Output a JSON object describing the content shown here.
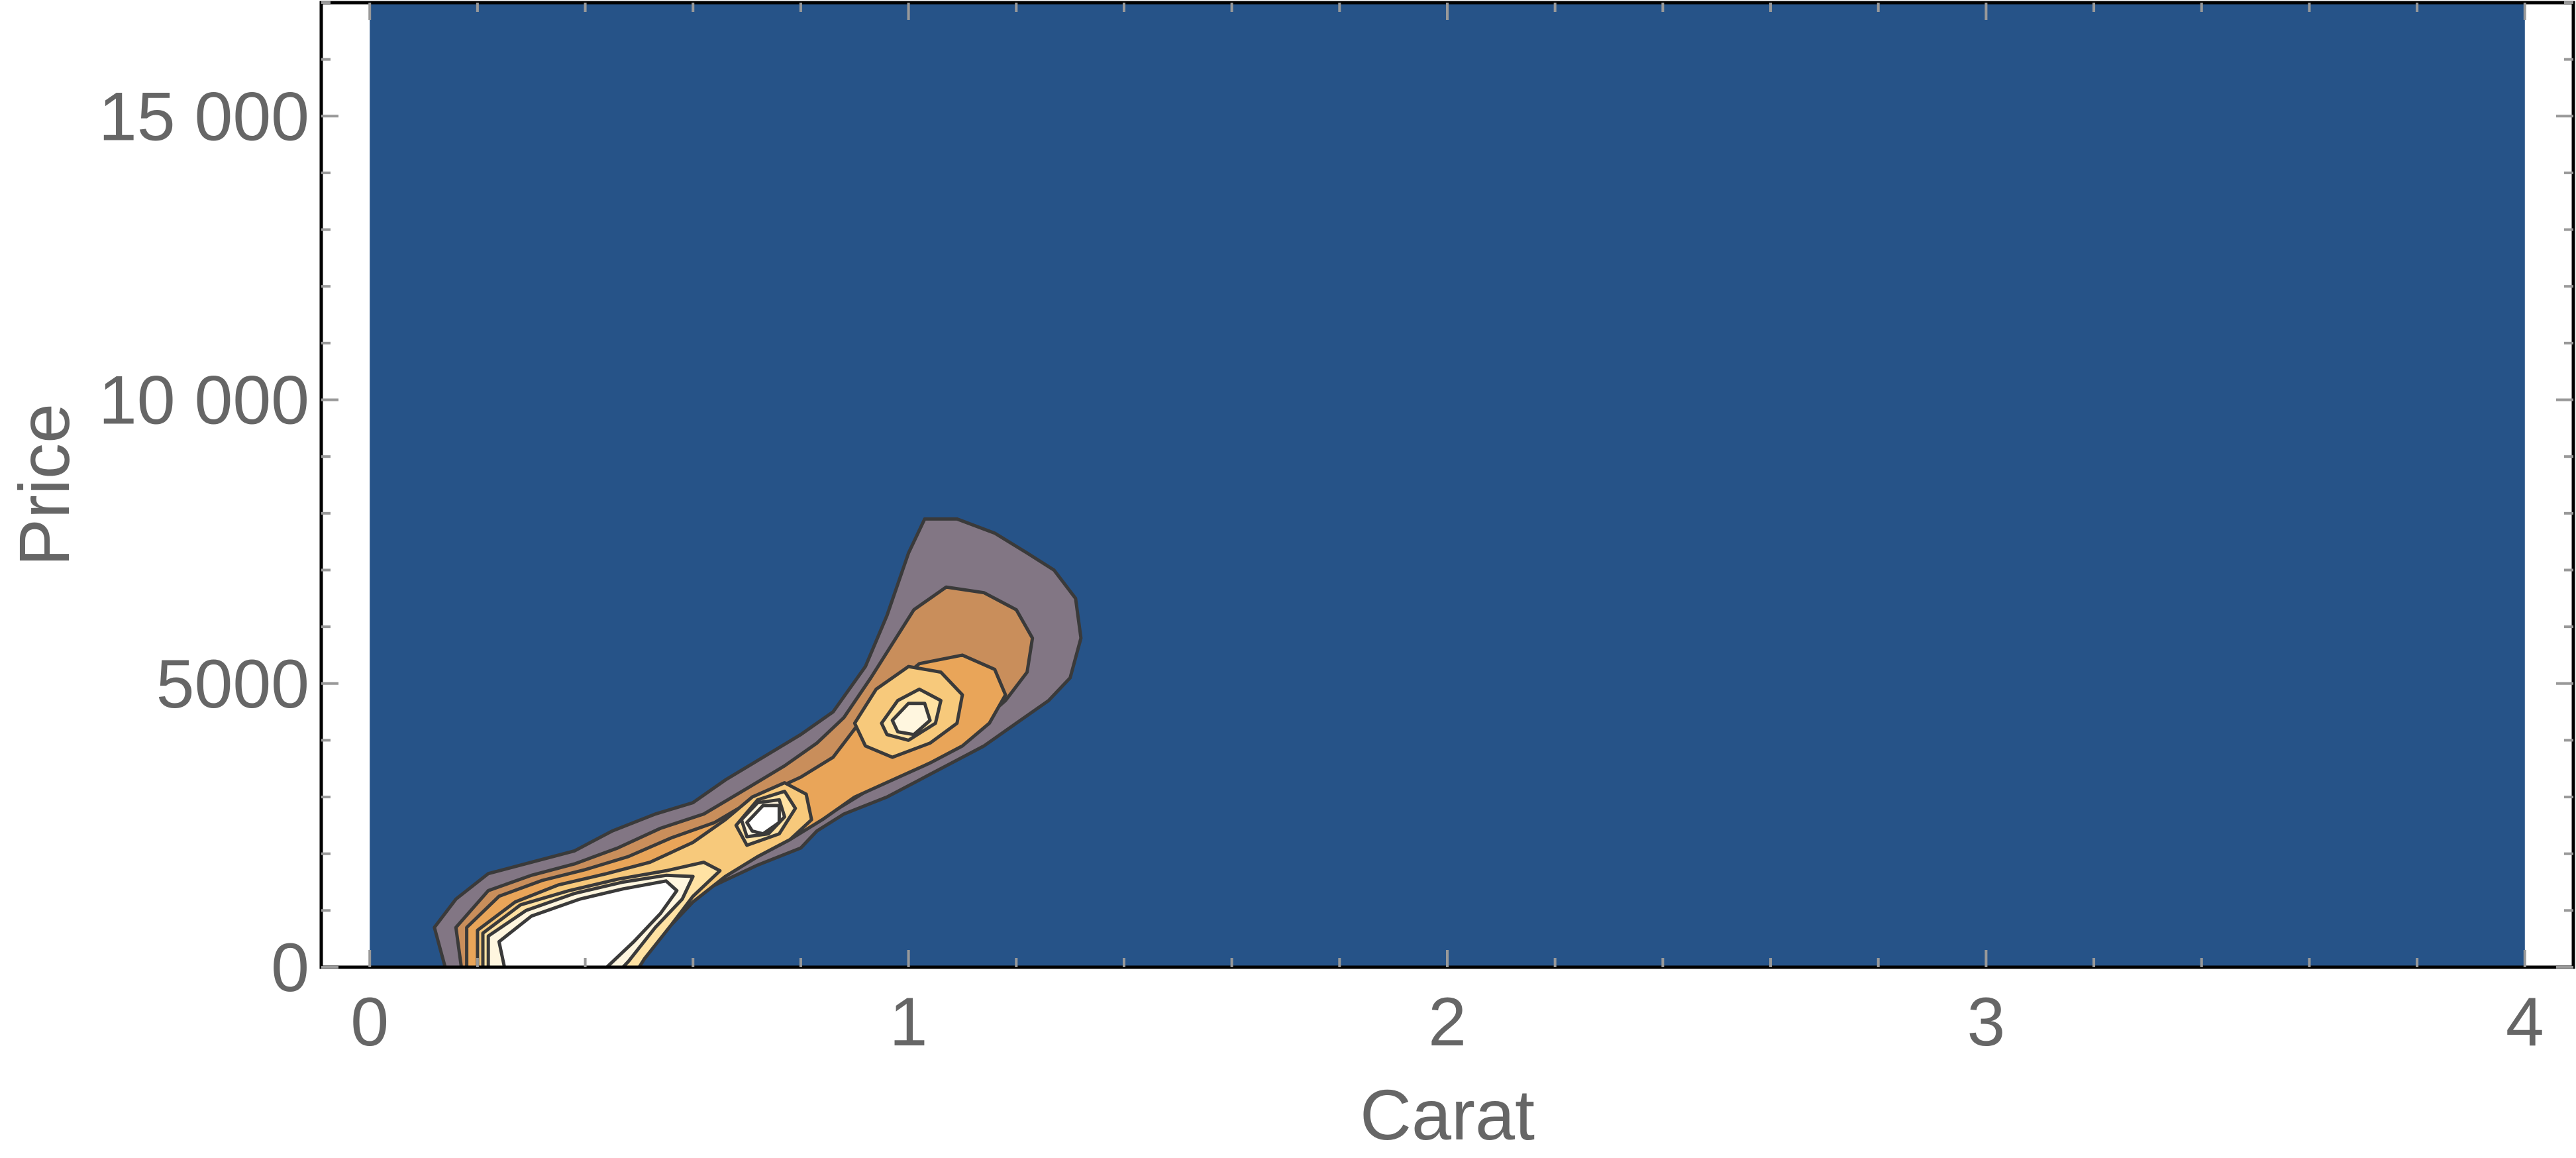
{
  "chart_data": {
    "type": "contour",
    "xlabel": "Carat",
    "ylabel": "Price",
    "xlim": [
      -0.09,
      4.09
    ],
    "ylim": [
      0,
      17000
    ],
    "x_ticks": [
      {
        "value": 0,
        "label": "0"
      },
      {
        "value": 1,
        "label": "1"
      },
      {
        "value": 2,
        "label": "2"
      },
      {
        "value": 3,
        "label": "3"
      },
      {
        "value": 4,
        "label": "4"
      }
    ],
    "y_ticks": [
      {
        "value": 0,
        "label": "0"
      },
      {
        "value": 5000,
        "label": "5000"
      },
      {
        "value": 10000,
        "label": "10 000"
      },
      {
        "value": 15000,
        "label": "15 000"
      }
    ],
    "filled_region": {
      "x": [
        0,
        4
      ],
      "y": [
        0,
        17000
      ]
    },
    "grid": false,
    "colors": {
      "background": "#265388",
      "levels": [
        "#827684",
        "#c98e5b",
        "#e9a559",
        "#f7c97b",
        "#ffe2a3",
        "#fff6df",
        "#ffffff"
      ],
      "contour_line": "#3a3a3a",
      "frame": "#000000",
      "text": "#666666"
    },
    "contour_levels": [
      {
        "level": 1,
        "polygons": [
          [
            [
              0.14,
              0
            ],
            [
              0.12,
              700
            ],
            [
              0.16,
              1200
            ],
            [
              0.22,
              1650
            ],
            [
              0.3,
              1850
            ],
            [
              0.38,
              2050
            ],
            [
              0.45,
              2400
            ],
            [
              0.53,
              2700
            ],
            [
              0.6,
              2900
            ],
            [
              0.66,
              3300
            ],
            [
              0.73,
              3700
            ],
            [
              0.8,
              4100
            ],
            [
              0.86,
              4500
            ],
            [
              0.92,
              5300
            ],
            [
              0.96,
              6200
            ],
            [
              1.0,
              7300
            ],
            [
              1.03,
              7900
            ],
            [
              1.09,
              7900
            ],
            [
              1.16,
              7650
            ],
            [
              1.22,
              7300
            ],
            [
              1.27,
              7000
            ],
            [
              1.31,
              6500
            ],
            [
              1.32,
              5800
            ],
            [
              1.3,
              5100
            ],
            [
              1.26,
              4700
            ],
            [
              1.2,
              4300
            ],
            [
              1.14,
              3900
            ],
            [
              1.08,
              3600
            ],
            [
              1.02,
              3300
            ],
            [
              0.96,
              3000
            ],
            [
              0.88,
              2700
            ],
            [
              0.83,
              2400
            ],
            [
              0.8,
              2100
            ],
            [
              0.72,
              1800
            ],
            [
              0.63,
              1400
            ],
            [
              0.57,
              1000
            ],
            [
              0.52,
              550
            ],
            [
              0.46,
              100
            ],
            [
              0.43,
              0
            ]
          ]
        ]
      },
      {
        "level": 2,
        "polygons": [
          [
            [
              0.17,
              0
            ],
            [
              0.16,
              700
            ],
            [
              0.22,
              1350
            ],
            [
              0.3,
              1620
            ],
            [
              0.38,
              1820
            ],
            [
              0.46,
              2100
            ],
            [
              0.54,
              2450
            ],
            [
              0.62,
              2700
            ],
            [
              0.7,
              3150
            ],
            [
              0.77,
              3550
            ],
            [
              0.83,
              3950
            ],
            [
              0.88,
              4400
            ],
            [
              0.93,
              5100
            ],
            [
              0.97,
              5700
            ],
            [
              1.01,
              6300
            ],
            [
              1.07,
              6700
            ],
            [
              1.14,
              6600
            ],
            [
              1.2,
              6300
            ],
            [
              1.23,
              5800
            ],
            [
              1.22,
              5200
            ],
            [
              1.18,
              4700
            ],
            [
              1.12,
              4200
            ],
            [
              1.06,
              3800
            ],
            [
              1.0,
              3500
            ],
            [
              0.93,
              3150
            ],
            [
              0.87,
              2800
            ],
            [
              0.82,
              2500
            ],
            [
              0.76,
              2150
            ],
            [
              0.67,
              1750
            ],
            [
              0.59,
              1300
            ],
            [
              0.53,
              800
            ],
            [
              0.48,
              300
            ],
            [
              0.45,
              0
            ]
          ]
        ]
      },
      {
        "level": 3,
        "polygons": [
          [
            [
              0.18,
              0
            ],
            [
              0.18,
              700
            ],
            [
              0.24,
              1250
            ],
            [
              0.32,
              1530
            ],
            [
              0.4,
              1720
            ],
            [
              0.48,
              1950
            ],
            [
              0.56,
              2280
            ],
            [
              0.64,
              2550
            ],
            [
              0.72,
              3000
            ],
            [
              0.8,
              3350
            ],
            [
              0.86,
              3700
            ],
            [
              0.9,
              4200
            ],
            [
              0.95,
              4800
            ],
            [
              1.02,
              5350
            ],
            [
              1.1,
              5500
            ],
            [
              1.16,
              5250
            ],
            [
              1.18,
              4800
            ],
            [
              1.15,
              4300
            ],
            [
              1.1,
              3900
            ],
            [
              1.04,
              3600
            ],
            [
              0.97,
              3300
            ],
            [
              0.9,
              3000
            ],
            [
              0.84,
              2600
            ],
            [
              0.78,
              2250
            ],
            [
              0.7,
              1850
            ],
            [
              0.62,
              1450
            ],
            [
              0.55,
              950
            ],
            [
              0.5,
              400
            ],
            [
              0.47,
              0
            ]
          ]
        ]
      },
      {
        "level": 4,
        "polygons": [
          [
            [
              0.2,
              0
            ],
            [
              0.2,
              650
            ],
            [
              0.27,
              1150
            ],
            [
              0.35,
              1450
            ],
            [
              0.44,
              1650
            ],
            [
              0.52,
              1850
            ],
            [
              0.6,
              2200
            ],
            [
              0.66,
              2600
            ],
            [
              0.71,
              3000
            ],
            [
              0.77,
              3250
            ],
            [
              0.81,
              3050
            ],
            [
              0.82,
              2600
            ],
            [
              0.78,
              2250
            ],
            [
              0.72,
              1950
            ],
            [
              0.66,
              1600
            ],
            [
              0.6,
              1150
            ],
            [
              0.55,
              650
            ],
            [
              0.5,
              150
            ],
            [
              0.49,
              0
            ]
          ],
          [
            [
              0.9,
              4300
            ],
            [
              0.94,
              4900
            ],
            [
              1.0,
              5300
            ],
            [
              1.06,
              5200
            ],
            [
              1.1,
              4800
            ],
            [
              1.09,
              4300
            ],
            [
              1.04,
              3950
            ],
            [
              0.97,
              3700
            ],
            [
              0.92,
              3900
            ]
          ]
        ]
      },
      {
        "level": 5,
        "polygons": [
          [
            [
              0.21,
              0
            ],
            [
              0.21,
              600
            ],
            [
              0.28,
              1100
            ],
            [
              0.37,
              1350
            ],
            [
              0.46,
              1550
            ],
            [
              0.55,
              1700
            ],
            [
              0.62,
              1850
            ],
            [
              0.65,
              1700
            ],
            [
              0.6,
              1250
            ],
            [
              0.56,
              750
            ],
            [
              0.51,
              150
            ],
            [
              0.5,
              0
            ]
          ],
          [
            [
              0.68,
              2500
            ],
            [
              0.72,
              2950
            ],
            [
              0.77,
              3100
            ],
            [
              0.79,
              2800
            ],
            [
              0.76,
              2350
            ],
            [
              0.7,
              2150
            ]
          ],
          [
            [
              0.95,
              4300
            ],
            [
              0.98,
              4700
            ],
            [
              1.02,
              4900
            ],
            [
              1.06,
              4700
            ],
            [
              1.05,
              4300
            ],
            [
              1.0,
              4000
            ],
            [
              0.96,
              4100
            ]
          ]
        ]
      },
      {
        "level": 6,
        "polygons": [
          [
            [
              0.22,
              0
            ],
            [
              0.22,
              550
            ],
            [
              0.29,
              1000
            ],
            [
              0.38,
              1300
            ],
            [
              0.47,
              1500
            ],
            [
              0.55,
              1620
            ],
            [
              0.6,
              1600
            ],
            [
              0.58,
              1200
            ],
            [
              0.53,
              700
            ],
            [
              0.48,
              100
            ],
            [
              0.47,
              0
            ]
          ],
          [
            [
              0.69,
              2600
            ],
            [
              0.72,
              2900
            ],
            [
              0.76,
              2950
            ],
            [
              0.77,
              2650
            ],
            [
              0.74,
              2350
            ],
            [
              0.7,
              2300
            ]
          ],
          [
            [
              0.97,
              4350
            ],
            [
              1.0,
              4650
            ],
            [
              1.03,
              4650
            ],
            [
              1.04,
              4350
            ],
            [
              1.01,
              4100
            ],
            [
              0.98,
              4150
            ]
          ]
        ]
      },
      {
        "level": 7,
        "polygons": [
          [
            [
              0.25,
              0
            ],
            [
              0.24,
              450
            ],
            [
              0.3,
              900
            ],
            [
              0.39,
              1200
            ],
            [
              0.47,
              1380
            ],
            [
              0.55,
              1520
            ],
            [
              0.57,
              1350
            ],
            [
              0.54,
              950
            ],
            [
              0.49,
              450
            ],
            [
              0.44,
              0
            ]
          ],
          [
            [
              0.7,
              2550
            ],
            [
              0.73,
              2850
            ],
            [
              0.76,
              2850
            ],
            [
              0.76,
              2550
            ],
            [
              0.73,
              2350
            ],
            [
              0.71,
              2400
            ]
          ]
        ]
      }
    ]
  }
}
